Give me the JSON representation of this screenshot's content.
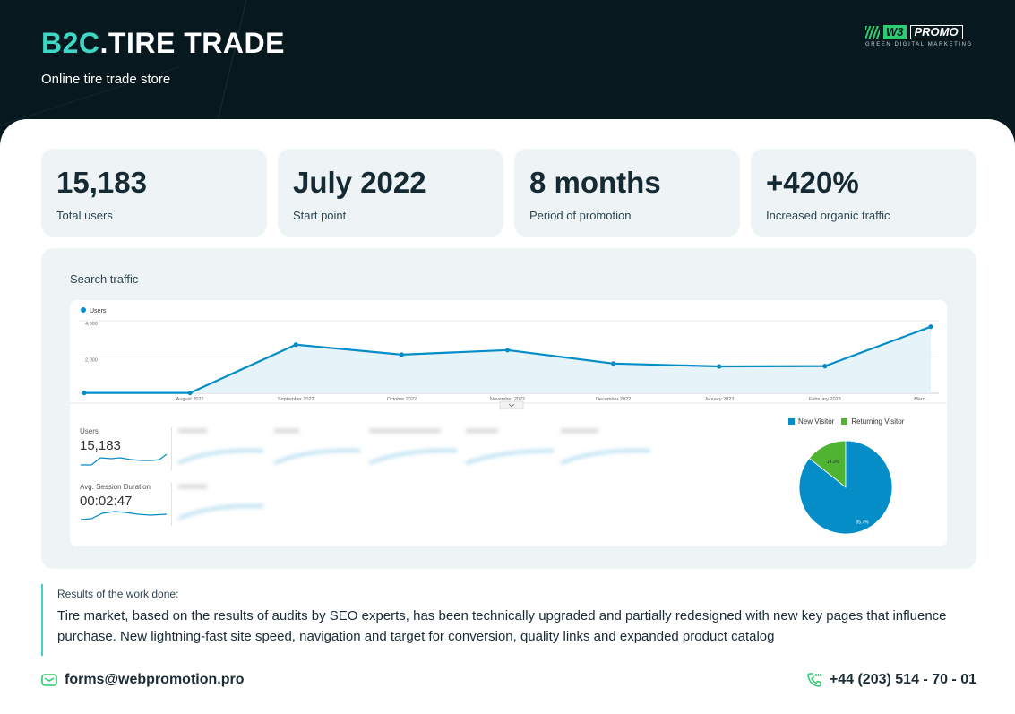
{
  "header": {
    "brand_accent": "B2C",
    "brand_rest": ".TIRE TRADE",
    "tagline": "Online tire trade store",
    "logo_mark": "W3",
    "logo_word": "PROMO",
    "logo_sub": "GREEN DIGITAL MARKETING"
  },
  "stats": [
    {
      "value": "15,183",
      "label": "Total users"
    },
    {
      "value": "July 2022",
      "label": "Start point"
    },
    {
      "value": "8 months",
      "label": "Period of promotion"
    },
    {
      "value": "+420%",
      "label": "Increased organic traffic"
    }
  ],
  "traffic": {
    "title": "Search traffic",
    "legend": "Users"
  },
  "chart_data": [
    {
      "type": "area",
      "x": [
        "",
        "August 2022",
        "September 2022",
        "October 2022",
        "November 2022",
        "December 2022",
        "January 2023",
        "February 2023",
        "Marc..."
      ],
      "series": [
        {
          "name": "Users",
          "values": [
            20,
            20,
            2680,
            2130,
            2380,
            1640,
            1480,
            1500,
            3670
          ]
        }
      ],
      "yticks": [
        "4,000",
        "2,000"
      ],
      "ylim": [
        0,
        4000
      ],
      "grid": true,
      "legend": "top-left"
    },
    {
      "type": "pie",
      "labels": [
        "New Visitor",
        "Returning Visitor"
      ],
      "values": [
        85.7,
        14.3
      ],
      "value_labels": [
        "85.7%",
        "14.3%"
      ],
      "legend": "top"
    }
  ],
  "sparklines": [
    {
      "label": "Users",
      "value": "15,183"
    },
    {
      "label": "Avg. Session Duration",
      "value": "00:02:47"
    }
  ],
  "results": {
    "title": "Results of the work done:",
    "text": "Tire market, based on the results of audits by SEO experts, has been technically upgraded and partially redesigned with new key pages that influence purchase. New lightning-fast site speed, navigation and target for conversion, quality links and expanded product catalog"
  },
  "contacts": {
    "email": "forms@webpromotion.pro",
    "phone": "+44 (203) 514 - 70 - 01"
  },
  "colors": {
    "header_bg": "#08181f",
    "accent": "#3fd6c4",
    "line_blue": "#058dc7",
    "returning_green": "#50b432",
    "card_bg": "#eef4f6"
  }
}
